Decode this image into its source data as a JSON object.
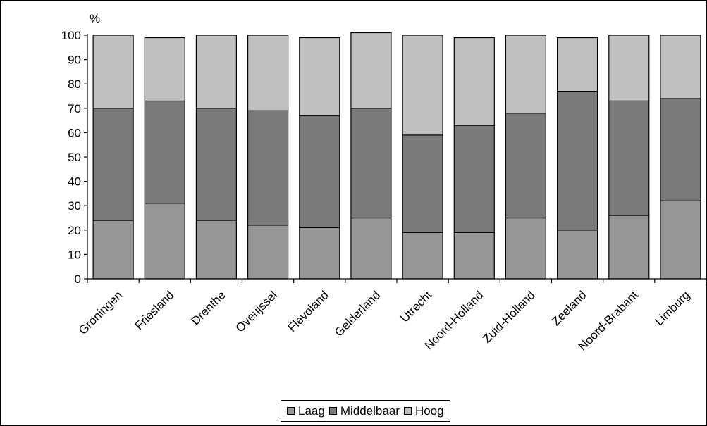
{
  "chart_data": {
    "type": "bar",
    "stacked": true,
    "unit_label": "%",
    "title": "",
    "xlabel": "",
    "ylabel": "",
    "ylim": [
      0,
      100
    ],
    "yticks": [
      0,
      10,
      20,
      30,
      40,
      50,
      60,
      70,
      80,
      90,
      100
    ],
    "grid": false,
    "legend_position": "bottom",
    "categories": [
      "Groningen",
      "Friesland",
      "Drenthe",
      "Overijssel",
      "Flevoland",
      "Gelderland",
      "Utrecht",
      "Noord-Holland",
      "Zuid-Holland",
      "Zeeland",
      "Noord-Brabant",
      "Limburg"
    ],
    "series": [
      {
        "name": "Laag",
        "color": "#969696",
        "values": [
          24,
          31,
          24,
          22,
          21,
          25,
          19,
          19,
          25,
          20,
          26,
          32
        ]
      },
      {
        "name": "Middelbaar",
        "color": "#7a7a7a",
        "values": [
          46,
          42,
          46,
          47,
          46,
          45,
          40,
          44,
          43,
          57,
          47,
          42
        ]
      },
      {
        "name": "Hoog",
        "color": "#c0c0c0",
        "values": [
          30,
          26,
          30,
          31,
          32,
          31,
          41,
          36,
          32,
          22,
          27,
          26
        ]
      }
    ]
  }
}
